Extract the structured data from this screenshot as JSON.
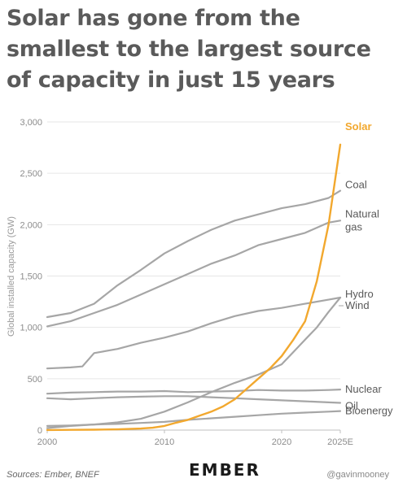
{
  "title": "Solar has gone from the smallest to the largest source of capacity in just 15 years",
  "footer": {
    "sources": "Sources: Ember, BNEF",
    "logo": "EMBER",
    "handle": "@gavinmooney"
  },
  "colors": {
    "solar": "#f2a82e",
    "other": "#a6a6a6",
    "axis": "#bfbfbf",
    "text": "#595959"
  },
  "chart_data": {
    "type": "line",
    "ylabel": "Global installed capacity (GW)",
    "xlabel": "",
    "ylim": [
      0,
      3000
    ],
    "xlim": [
      2000,
      2025
    ],
    "yticks": [
      0,
      500,
      1000,
      1500,
      2000,
      2500,
      3000
    ],
    "ytick_labels": [
      "0",
      "500",
      "1,000",
      "1,500",
      "2,000",
      "2,500",
      "3,000"
    ],
    "xticks": [
      2000,
      2010,
      2020,
      2025
    ],
    "xtick_labels": [
      "2000",
      "2010",
      "2020",
      "2025E"
    ],
    "grid": true,
    "series": [
      {
        "name": "Solar",
        "highlight": true,
        "label_lines": [
          "Solar"
        ],
        "x": [
          2000,
          2002,
          2004,
          2006,
          2008,
          2009,
          2010,
          2011,
          2012,
          2013,
          2014,
          2015,
          2016,
          2017,
          2018,
          2019,
          2020,
          2021,
          2022,
          2023,
          2024,
          2025
        ],
        "y": [
          1,
          2,
          4,
          7,
          15,
          23,
          40,
          72,
          100,
          140,
          180,
          230,
          300,
          400,
          500,
          600,
          720,
          880,
          1060,
          1450,
          2000,
          2780
        ]
      },
      {
        "name": "Coal",
        "label_lines": [
          "Coal"
        ],
        "x": [
          2000,
          2002,
          2004,
          2006,
          2008,
          2010,
          2012,
          2014,
          2016,
          2018,
          2020,
          2022,
          2024,
          2025
        ],
        "y": [
          1100,
          1140,
          1230,
          1410,
          1560,
          1720,
          1840,
          1950,
          2040,
          2100,
          2160,
          2200,
          2260,
          2330
        ]
      },
      {
        "name": "Natural gas",
        "label_lines": [
          "Natural",
          "gas"
        ],
        "x": [
          2000,
          2002,
          2004,
          2006,
          2008,
          2010,
          2012,
          2014,
          2016,
          2018,
          2020,
          2022,
          2024,
          2025
        ],
        "y": [
          1010,
          1060,
          1140,
          1220,
          1320,
          1420,
          1520,
          1620,
          1700,
          1800,
          1860,
          1920,
          2020,
          2040
        ]
      },
      {
        "name": "Hydro",
        "label_lines": [
          "Hydro"
        ],
        "x": [
          2000,
          2002,
          2003,
          2004,
          2006,
          2008,
          2010,
          2012,
          2014,
          2016,
          2018,
          2020,
          2022,
          2024,
          2025
        ],
        "y": [
          600,
          610,
          620,
          750,
          790,
          850,
          900,
          960,
          1040,
          1110,
          1160,
          1190,
          1230,
          1270,
          1290
        ]
      },
      {
        "name": "Wind",
        "label_lines": [
          "Wind"
        ],
        "x": [
          2000,
          2002,
          2004,
          2006,
          2008,
          2010,
          2012,
          2014,
          2016,
          2018,
          2020,
          2021,
          2022,
          2023,
          2024,
          2025
        ],
        "y": [
          20,
          40,
          55,
          75,
          110,
          180,
          270,
          370,
          460,
          540,
          640,
          760,
          880,
          1000,
          1150,
          1290
        ]
      },
      {
        "name": "Nuclear",
        "label_lines": [
          "Nuclear"
        ],
        "x": [
          2000,
          2002,
          2004,
          2006,
          2008,
          2010,
          2012,
          2014,
          2016,
          2018,
          2020,
          2022,
          2024,
          2025
        ],
        "y": [
          355,
          365,
          370,
          375,
          375,
          380,
          370,
          375,
          380,
          390,
          385,
          385,
          390,
          395
        ]
      },
      {
        "name": "Oil",
        "label_lines": [
          "Oil"
        ],
        "x": [
          2000,
          2002,
          2004,
          2006,
          2008,
          2010,
          2012,
          2014,
          2016,
          2018,
          2020,
          2022,
          2024,
          2025
        ],
        "y": [
          310,
          300,
          310,
          320,
          325,
          330,
          330,
          320,
          310,
          300,
          290,
          280,
          270,
          265
        ]
      },
      {
        "name": "Bioenergy",
        "label_lines": [
          "Bioenergy"
        ],
        "x": [
          2000,
          2002,
          2004,
          2006,
          2008,
          2010,
          2012,
          2014,
          2016,
          2018,
          2020,
          2022,
          2024,
          2025
        ],
        "y": [
          40,
          45,
          55,
          60,
          70,
          80,
          100,
          115,
          130,
          145,
          160,
          170,
          180,
          185
        ]
      }
    ]
  }
}
